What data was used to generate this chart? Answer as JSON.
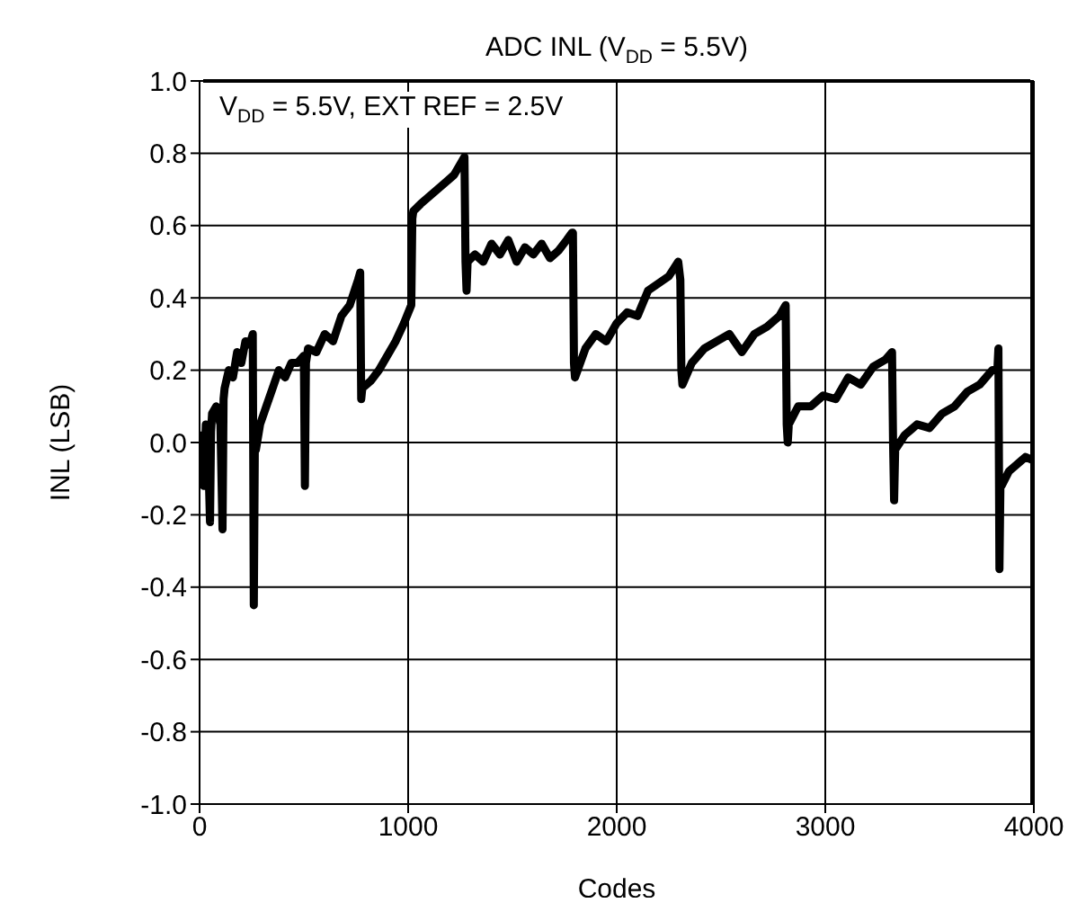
{
  "chart_data": {
    "type": "line",
    "title": "ADC INL (V$_{DD}$ = 5.5V)",
    "xlabel": "Codes",
    "ylabel": "INL (LSB)",
    "annotations": [
      "V$_{DD}$ =  5.5V, EXT REF = 2.5V"
    ],
    "x": [
      0,
      10,
      20,
      30,
      40,
      50,
      55,
      60,
      80,
      100,
      110,
      115,
      120,
      140,
      160,
      180,
      200,
      220,
      240,
      255,
      260,
      265,
      270,
      290,
      320,
      350,
      380,
      410,
      440,
      470,
      500,
      505,
      510,
      515,
      520,
      560,
      600,
      640,
      680,
      720,
      760,
      770,
      775,
      780,
      820,
      860,
      900,
      940,
      980,
      1015,
      1020,
      1025,
      1060,
      1100,
      1140,
      1180,
      1220,
      1260,
      1270,
      1275,
      1280,
      1285,
      1320,
      1360,
      1400,
      1440,
      1480,
      1520,
      1560,
      1600,
      1640,
      1680,
      1720,
      1760,
      1785,
      1790,
      1795,
      1800,
      1850,
      1900,
      1950,
      2000,
      2050,
      2100,
      2150,
      2200,
      2250,
      2295,
      2305,
      2310,
      2315,
      2360,
      2420,
      2480,
      2540,
      2600,
      2660,
      2720,
      2780,
      2810,
      2815,
      2820,
      2825,
      2870,
      2930,
      2990,
      3050,
      3110,
      3170,
      3230,
      3290,
      3320,
      3325,
      3330,
      3335,
      3380,
      3440,
      3500,
      3560,
      3620,
      3680,
      3740,
      3800,
      3825,
      3830,
      3835,
      3840,
      3845,
      3880,
      3920,
      3960,
      4000
    ],
    "series": [
      {
        "color": "#000000",
        "values": [
          -0.05,
          0.02,
          -0.12,
          0.05,
          0.0,
          -0.22,
          0.03,
          0.08,
          0.1,
          0.05,
          -0.24,
          0.12,
          0.15,
          0.2,
          0.18,
          0.25,
          0.22,
          0.28,
          0.27,
          0.3,
          -0.45,
          0.0,
          -0.02,
          0.05,
          0.1,
          0.15,
          0.2,
          0.18,
          0.22,
          0.22,
          0.24,
          -0.12,
          0.22,
          0.24,
          0.26,
          0.25,
          0.3,
          0.28,
          0.35,
          0.38,
          0.45,
          0.47,
          0.12,
          0.15,
          0.17,
          0.2,
          0.24,
          0.28,
          0.33,
          0.38,
          0.62,
          0.64,
          0.66,
          0.68,
          0.7,
          0.72,
          0.74,
          0.78,
          0.79,
          0.5,
          0.42,
          0.5,
          0.52,
          0.5,
          0.55,
          0.52,
          0.56,
          0.5,
          0.54,
          0.52,
          0.55,
          0.51,
          0.53,
          0.56,
          0.58,
          0.58,
          0.22,
          0.18,
          0.26,
          0.3,
          0.28,
          0.33,
          0.36,
          0.35,
          0.42,
          0.44,
          0.46,
          0.5,
          0.45,
          0.2,
          0.16,
          0.22,
          0.26,
          0.28,
          0.3,
          0.25,
          0.3,
          0.32,
          0.35,
          0.38,
          0.05,
          0.0,
          0.05,
          0.1,
          0.1,
          0.13,
          0.12,
          0.18,
          0.16,
          0.21,
          0.23,
          0.25,
          0.0,
          -0.16,
          -0.02,
          0.02,
          0.05,
          0.04,
          0.08,
          0.1,
          0.14,
          0.16,
          0.2,
          0.2,
          0.26,
          -0.35,
          -0.1,
          -0.12,
          -0.08,
          -0.06,
          -0.04,
          -0.05
        ]
      }
    ],
    "xlim": [
      0,
      4000
    ],
    "xticks": [
      0,
      1000,
      2000,
      3000,
      4000
    ],
    "ylim": [
      -1,
      1
    ],
    "yticks": [
      {
        "value": -1,
        "label": "-1.0"
      },
      {
        "value": -0.8,
        "label": "-0.8"
      },
      {
        "value": -0.6,
        "label": "-0.6"
      },
      {
        "value": -0.4,
        "label": "-0.4"
      },
      {
        "value": -0.2,
        "label": "-0.2"
      },
      {
        "value": 0,
        "label": "0.0"
      },
      {
        "value": 0.2,
        "label": "0.2"
      },
      {
        "value": 0.4,
        "label": "0.4"
      },
      {
        "value": 0.6,
        "label": "0.6"
      },
      {
        "value": 0.8,
        "label": "0.8"
      },
      {
        "value": 1,
        "label": "1.0"
      }
    ],
    "grid": true,
    "marker": "none",
    "line_style": "solid",
    "legend": false
  }
}
